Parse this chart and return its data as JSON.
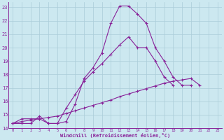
{
  "xlabel": "Windchill (Refroidissement éolien,°C)",
  "bg_color": "#cce8f0",
  "grid_color": "#aaccd8",
  "line_color": "#882299",
  "xlim": [
    -0.5,
    23.5
  ],
  "ylim": [
    14,
    23.4
  ],
  "yticks": [
    14,
    15,
    16,
    17,
    18,
    19,
    20,
    21,
    22,
    23
  ],
  "xticks": [
    0,
    1,
    2,
    3,
    4,
    5,
    6,
    7,
    8,
    9,
    10,
    11,
    12,
    13,
    14,
    15,
    16,
    17,
    18,
    19,
    20,
    21,
    22,
    23
  ],
  "line1_x": [
    0,
    1,
    2,
    3,
    4,
    5,
    6,
    7,
    8,
    9,
    10,
    11,
    12,
    13,
    14,
    15,
    16,
    17,
    18,
    19,
    20,
    21,
    22,
    23
  ],
  "line1_y": [
    14.35,
    14.7,
    14.7,
    14.7,
    14.35,
    14.35,
    14.5,
    15.8,
    17.7,
    18.5,
    19.6,
    21.8,
    23.1,
    23.1,
    22.5,
    21.8,
    20.0,
    19.0,
    17.8,
    17.2,
    17.2,
    null,
    null,
    null
  ],
  "line2_x": [
    0,
    1,
    2,
    3,
    4,
    5,
    6,
    7,
    8,
    9,
    10,
    11,
    12,
    13,
    14,
    15,
    16,
    17,
    18,
    19,
    20,
    21,
    22,
    23
  ],
  "line2_y": [
    14.35,
    14.35,
    14.35,
    14.9,
    14.35,
    14.35,
    15.5,
    16.5,
    17.5,
    18.2,
    18.8,
    19.5,
    20.2,
    20.8,
    20.0,
    20.0,
    19.0,
    17.8,
    17.2,
    null,
    null,
    null,
    null,
    null
  ],
  "line3_x": [
    0,
    1,
    2,
    3,
    4,
    5,
    6,
    7,
    8,
    9,
    10,
    11,
    12,
    13,
    14,
    15,
    16,
    17,
    18,
    19,
    20,
    21,
    22,
    23
  ],
  "line3_y": [
    14.35,
    14.5,
    14.6,
    14.7,
    14.8,
    14.9,
    15.1,
    15.3,
    15.5,
    15.7,
    15.9,
    16.1,
    16.35,
    16.55,
    16.75,
    16.95,
    17.15,
    17.35,
    17.5,
    17.6,
    17.7,
    17.2,
    null,
    null
  ]
}
